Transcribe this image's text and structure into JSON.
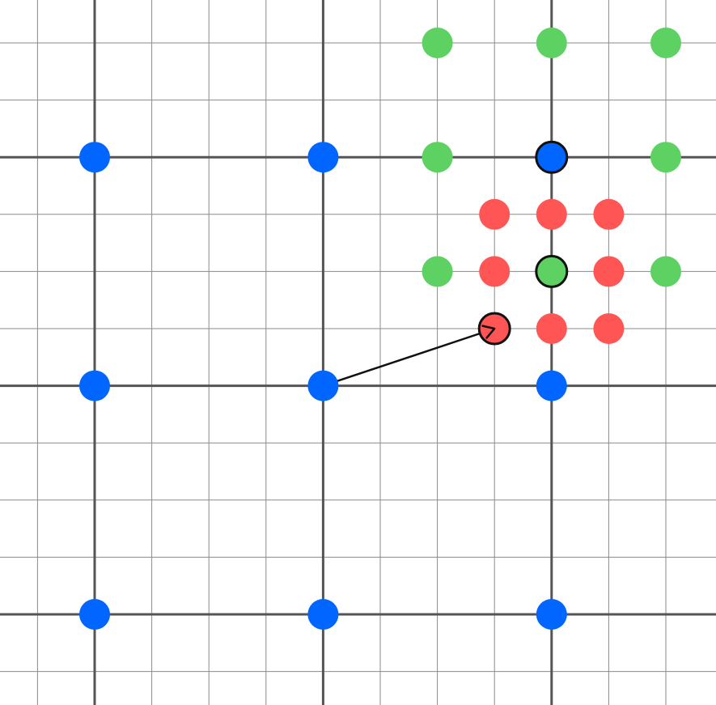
{
  "grid": {
    "fine_step": 1,
    "coarse_step": 4,
    "fine_color": "#8a8a8a",
    "coarse_color": "#555555"
  },
  "colors": {
    "blue": "#0066ff",
    "green": "#5ed163",
    "red": "#ff5555",
    "outline": "#111111",
    "arrow": "#111111"
  },
  "points": {
    "blue": [
      {
        "x": 0,
        "y": 8
      },
      {
        "x": 4,
        "y": 8
      },
      {
        "x": 8,
        "y": 8
      },
      {
        "x": 0,
        "y": 4
      },
      {
        "x": 4,
        "y": 4
      },
      {
        "x": 8,
        "y": 4
      },
      {
        "x": 0,
        "y": 0
      },
      {
        "x": 4,
        "y": 0
      },
      {
        "x": 8,
        "y": 0
      }
    ],
    "green": [
      {
        "x": 6,
        "y": 10
      },
      {
        "x": 8,
        "y": 10
      },
      {
        "x": 10,
        "y": 10
      },
      {
        "x": 6,
        "y": 8
      },
      {
        "x": 10,
        "y": 8
      },
      {
        "x": 6,
        "y": 6
      },
      {
        "x": 8,
        "y": 6
      },
      {
        "x": 10,
        "y": 6
      }
    ],
    "red": [
      {
        "x": 7,
        "y": 7
      },
      {
        "x": 8,
        "y": 7
      },
      {
        "x": 9,
        "y": 7
      },
      {
        "x": 7,
        "y": 6
      },
      {
        "x": 9,
        "y": 6
      },
      {
        "x": 7,
        "y": 5
      },
      {
        "x": 8,
        "y": 5
      },
      {
        "x": 9,
        "y": 5
      }
    ]
  },
  "highlighted": [
    {
      "color": "blue",
      "x": 8,
      "y": 8
    },
    {
      "color": "green",
      "x": 8,
      "y": 6
    },
    {
      "color": "red",
      "x": 7,
      "y": 5
    }
  ],
  "arrow": {
    "from": {
      "x": 4,
      "y": 4
    },
    "to": {
      "x": 7,
      "y": 5
    }
  }
}
